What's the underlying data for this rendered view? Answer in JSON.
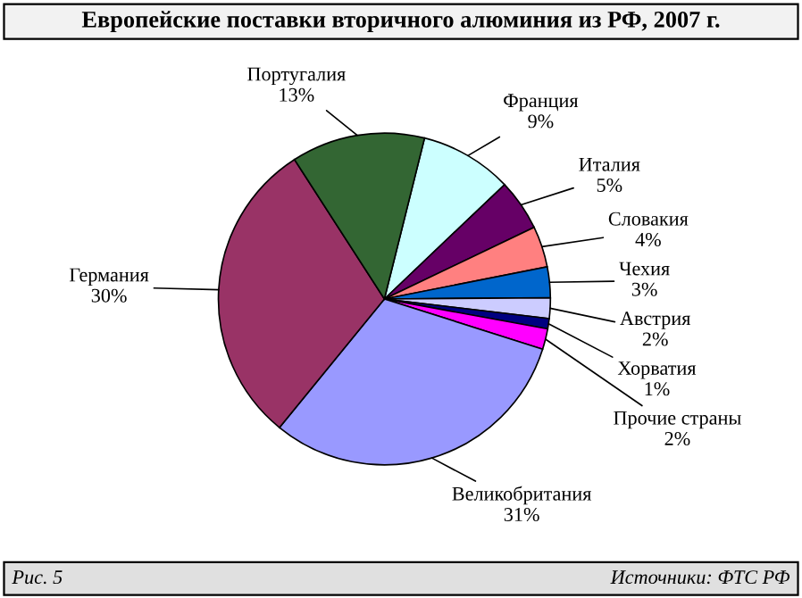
{
  "chart_data": {
    "type": "pie",
    "title": "Европейские поставки вторичного алюминия из РФ, 2007 г.",
    "categories": [
      "Франция",
      "Италия",
      "Словакия",
      "Чехия",
      "Австрия",
      "Хорватия",
      "Прочие страны",
      "Великобритания",
      "Германия",
      "Португалия"
    ],
    "values": [
      9,
      5,
      4,
      3,
      2,
      1,
      2,
      31,
      30,
      13
    ],
    "value_labels": [
      "9%",
      "5%",
      "4%",
      "3%",
      "2%",
      "1%",
      "2%",
      "31%",
      "30%",
      "13%"
    ],
    "colors": [
      "#ccffff",
      "#660066",
      "#ff8080",
      "#0066cc",
      "#ccccff",
      "#000080",
      "#ff00ff",
      "#9999ff",
      "#993366",
      "#336633"
    ],
    "annotations": [
      "Рис. 5",
      "Источники: ФТС РФ"
    ]
  }
}
